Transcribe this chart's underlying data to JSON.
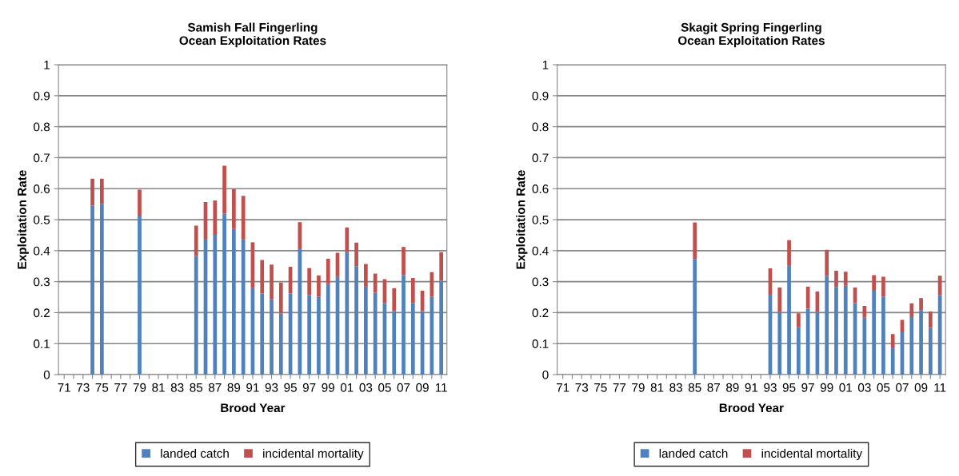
{
  "chart_data": [
    {
      "type": "bar",
      "stacked": true,
      "title": "Samish Fall Fingerling\nOcean Exploitation Rates",
      "xlabel": "Brood Year",
      "ylabel": "Exploitation Rate",
      "categories": [
        "71",
        null,
        "73",
        null,
        "75",
        null,
        "77",
        null,
        "79",
        null,
        "81",
        null,
        "83",
        null,
        "85",
        null,
        "87",
        null,
        "89",
        null,
        "91",
        null,
        "93",
        null,
        "95",
        null,
        "97",
        null,
        "99",
        null,
        "01",
        null,
        "03",
        null,
        "05",
        null,
        "07",
        null,
        "09",
        null,
        "11"
      ],
      "series": [
        {
          "name": "landed catch",
          "color": "#4f81bd",
          "values": [
            null,
            null,
            null,
            0.546,
            0.551,
            null,
            null,
            null,
            0.513,
            null,
            null,
            null,
            null,
            null,
            0.382,
            0.436,
            0.451,
            0.519,
            0.47,
            0.436,
            0.279,
            0.262,
            0.243,
            0.197,
            0.262,
            0.405,
            0.257,
            0.251,
            0.292,
            0.315,
            0.395,
            0.35,
            0.284,
            0.264,
            0.231,
            0.205,
            0.321,
            0.231,
            0.205,
            0.251,
            0.303
          ]
        },
        {
          "name": "incidental mortality",
          "color": "#c0504d",
          "values": [
            null,
            null,
            null,
            0.086,
            0.081,
            null,
            null,
            null,
            0.084,
            null,
            null,
            null,
            null,
            null,
            0.099,
            0.121,
            0.111,
            0.155,
            0.128,
            0.141,
            0.148,
            0.108,
            0.112,
            0.1,
            0.086,
            0.087,
            0.087,
            0.069,
            0.082,
            0.078,
            0.08,
            0.076,
            0.073,
            0.062,
            0.077,
            0.074,
            0.091,
            0.081,
            0.066,
            0.08,
            0.092
          ]
        }
      ],
      "ylim": [
        0,
        1
      ],
      "yticks": [
        0,
        0.1,
        0.2,
        0.3,
        0.4,
        0.5,
        0.6,
        0.7,
        0.8,
        0.9,
        1
      ],
      "grid": "y",
      "legend": "bottom"
    },
    {
      "type": "bar",
      "stacked": true,
      "title": "Skagit Spring Fingerling\nOcean Exploitation Rates",
      "xlabel": "Brood Year",
      "ylabel": "Exploitation Rate",
      "categories": [
        "71",
        null,
        "73",
        null,
        "75",
        null,
        "77",
        null,
        "79",
        null,
        "81",
        null,
        "83",
        null,
        "85",
        null,
        "87",
        null,
        "89",
        null,
        "91",
        null,
        "93",
        null,
        "95",
        null,
        "97",
        null,
        "99",
        null,
        "01",
        null,
        "03",
        null,
        "05",
        null,
        "07",
        null,
        "09",
        null,
        "11"
      ],
      "series": [
        {
          "name": "landed catch",
          "color": "#4f81bd",
          "values": [
            null,
            null,
            null,
            null,
            null,
            null,
            null,
            null,
            null,
            null,
            null,
            null,
            null,
            null,
            0.373,
            null,
            null,
            null,
            null,
            null,
            null,
            null,
            0.258,
            0.202,
            0.351,
            0.153,
            0.213,
            0.203,
            0.319,
            0.283,
            0.287,
            0.231,
            0.184,
            0.271,
            0.252,
            0.088,
            0.137,
            0.186,
            0.208,
            0.151,
            0.257
          ]
        },
        {
          "name": "incidental mortality",
          "color": "#c0504d",
          "values": [
            null,
            null,
            null,
            null,
            null,
            null,
            null,
            null,
            null,
            null,
            null,
            null,
            null,
            null,
            0.118,
            null,
            null,
            null,
            null,
            null,
            null,
            null,
            0.085,
            0.079,
            0.083,
            0.045,
            0.071,
            0.065,
            0.084,
            0.052,
            0.045,
            0.05,
            0.038,
            0.05,
            0.064,
            0.043,
            0.04,
            0.044,
            0.039,
            0.053,
            0.062
          ]
        }
      ],
      "ylim": [
        0,
        1
      ],
      "yticks": [
        0,
        0.1,
        0.2,
        0.3,
        0.4,
        0.5,
        0.6,
        0.7,
        0.8,
        0.9,
        1
      ],
      "grid": "y",
      "legend": "bottom"
    }
  ]
}
